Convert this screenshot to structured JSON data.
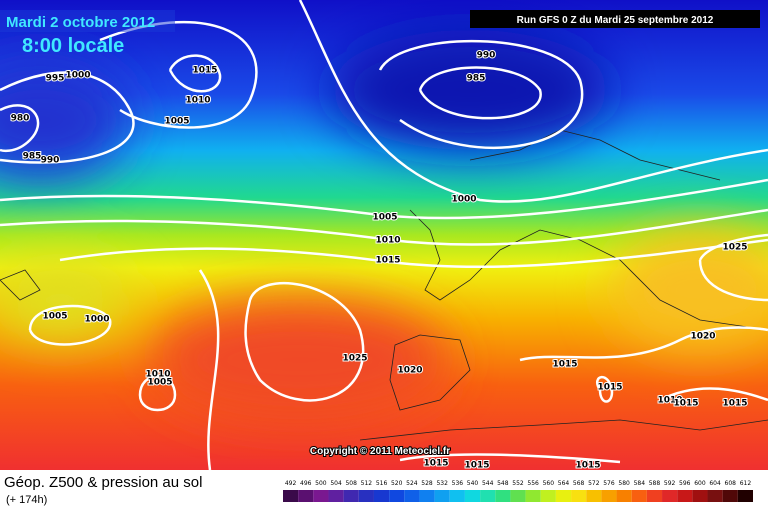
{
  "header": {
    "date": "Mardi 2 octobre 2012",
    "time": "8:00 locale",
    "run": "Run GFS 0 Z du Mardi 25 septembre 2012",
    "copyright": "Copyright © 2011 Meteociel.fr"
  },
  "isobar_labels": [
    1000,
    995,
    980,
    985,
    990,
    1015,
    1010,
    1005,
    990,
    985,
    1000,
    1005,
    1010,
    1015,
    1025,
    1005,
    1000,
    1025,
    1020,
    1015,
    1010,
    1005,
    1015,
    1020,
    1010,
    1015,
    1015,
    1015,
    1015,
    1015
  ],
  "legend": {
    "title": "Géop. Z500 & pression au sol",
    "subtitle": "(+ 174h)",
    "scale": [
      492,
      496,
      500,
      504,
      508,
      512,
      516,
      520,
      524,
      528,
      532,
      536,
      540,
      544,
      548,
      552,
      556,
      560,
      564,
      568,
      572,
      576,
      580,
      584,
      588,
      592,
      596,
      600,
      604,
      608,
      612
    ]
  }
}
